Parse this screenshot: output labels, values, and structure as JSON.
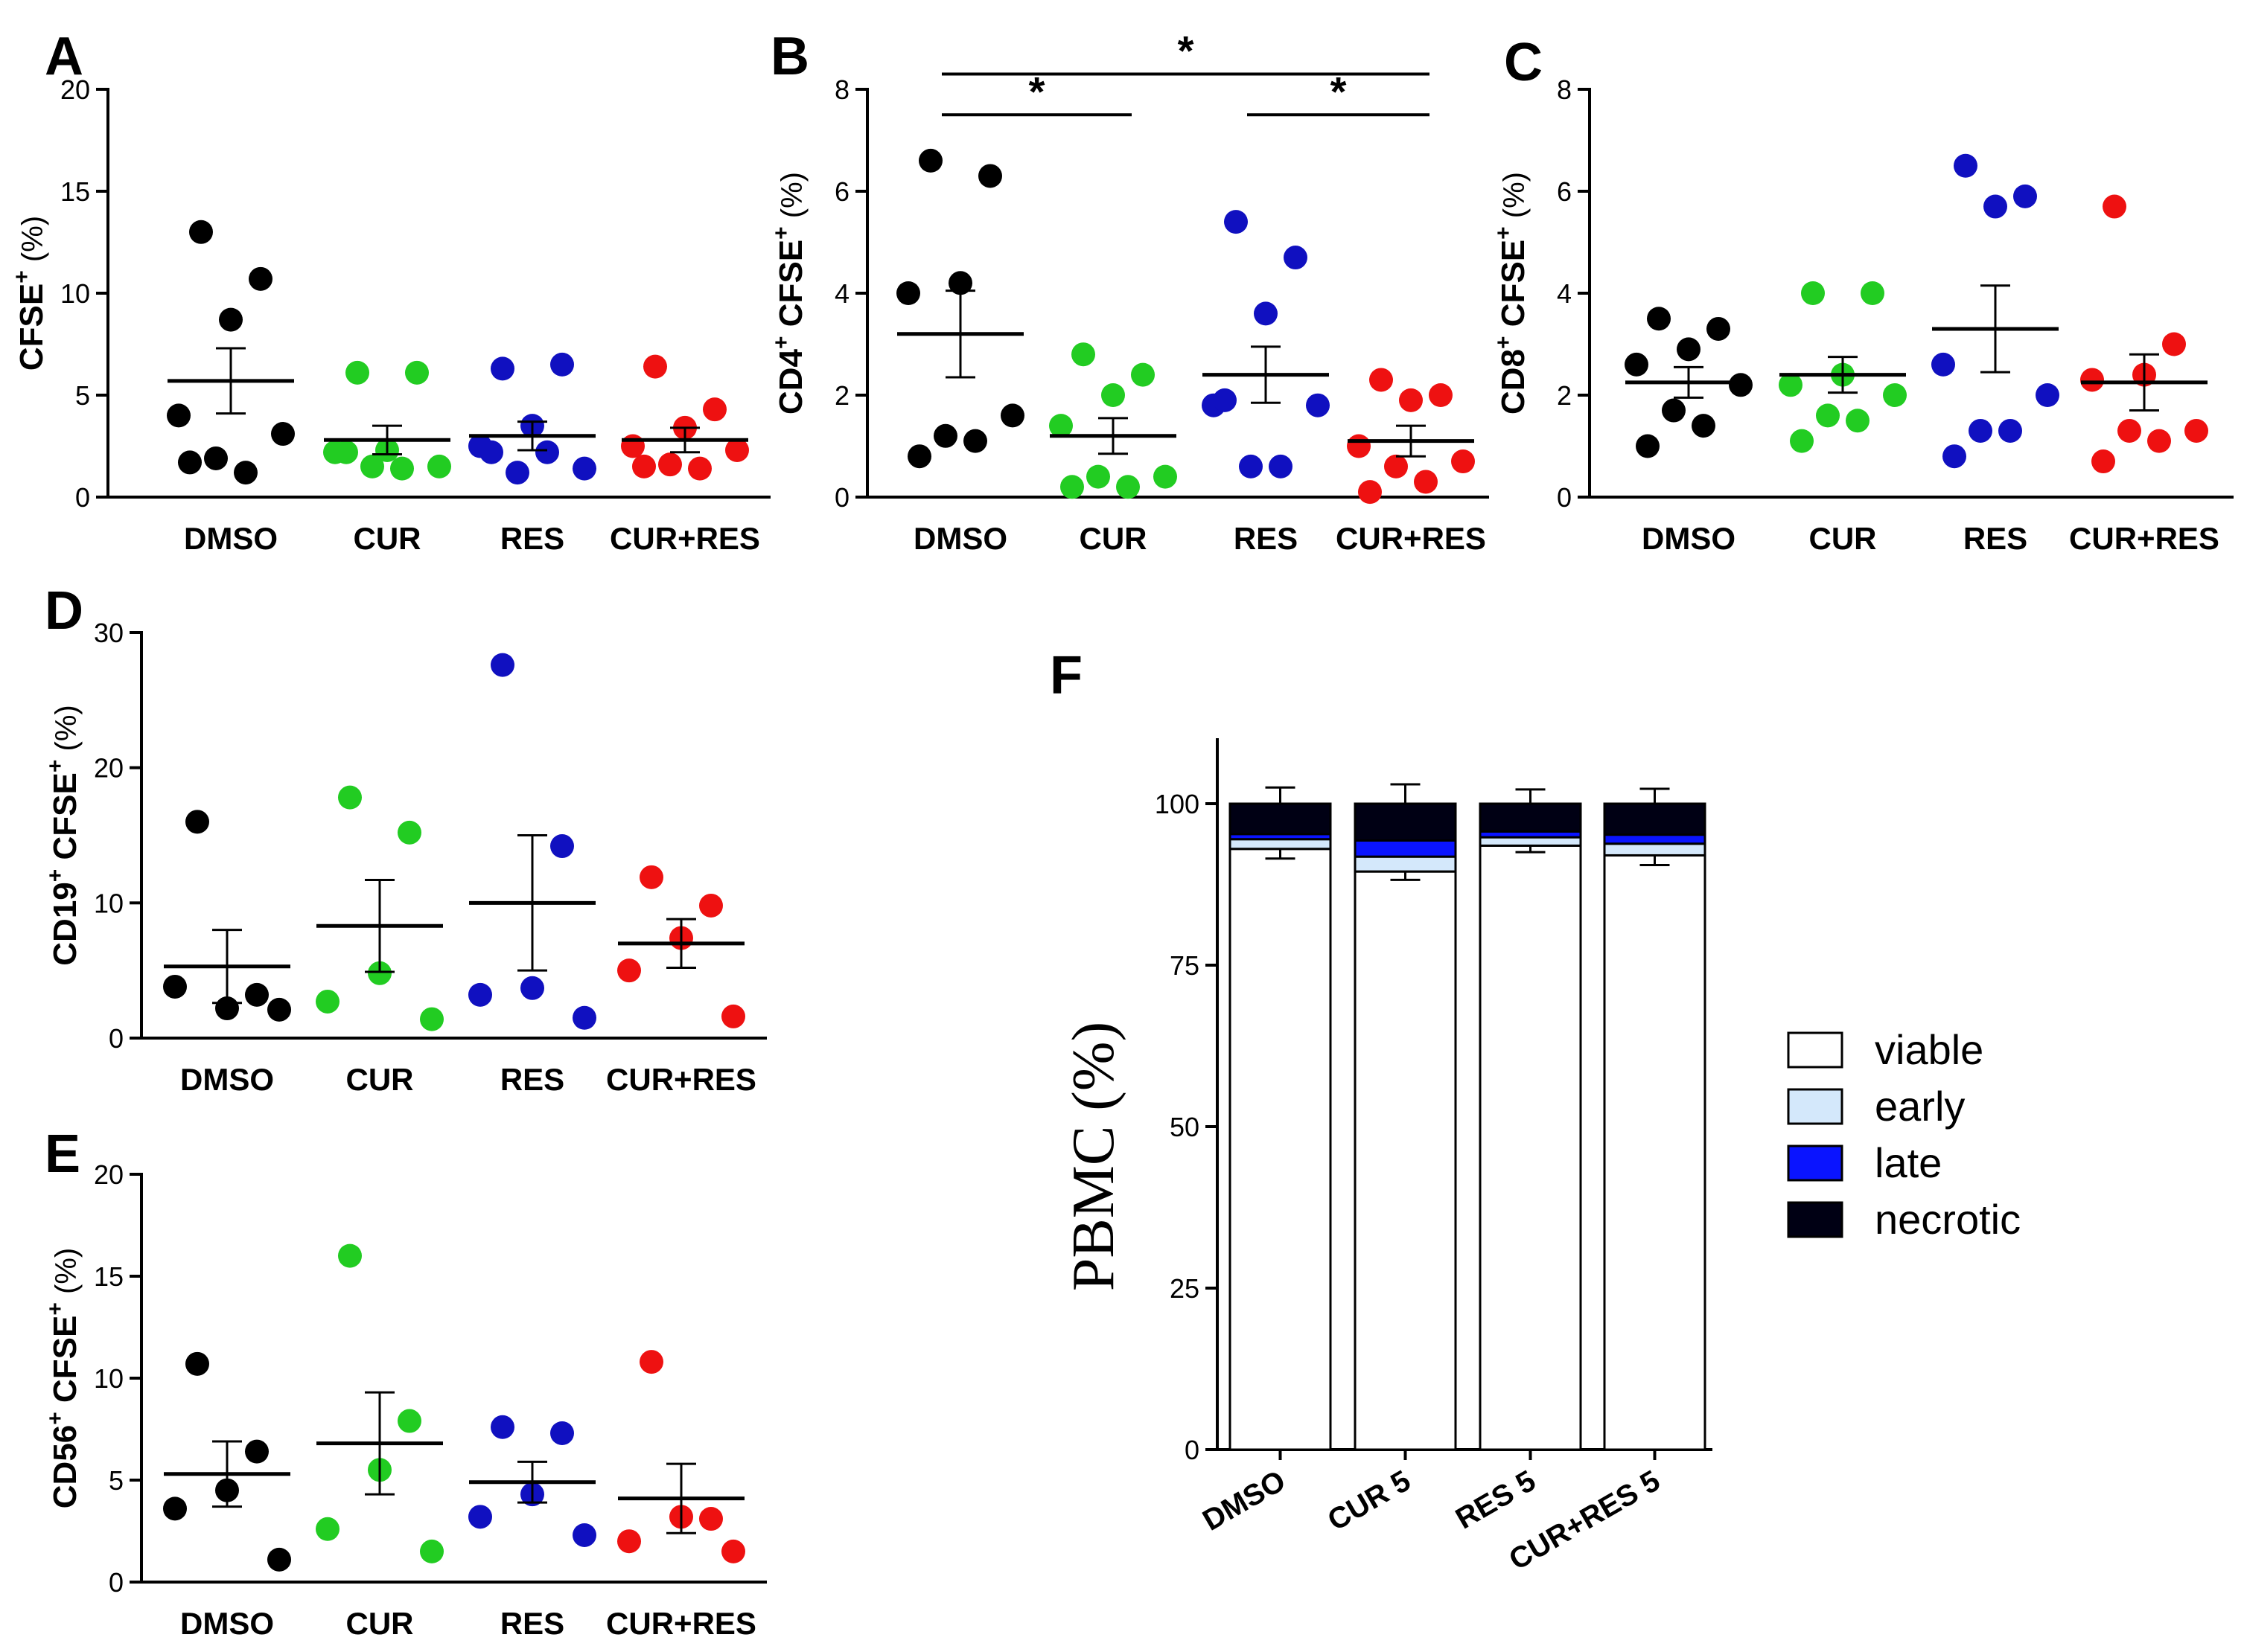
{
  "colors": {
    "dmso": "#000000",
    "cur": "#22cc22",
    "res": "#1010c0",
    "combo": "#ee1111",
    "viable": "#ffffff",
    "early": "#d4e8fb",
    "late": "#0a14ff",
    "necrotic": "#000014"
  },
  "chart_data": [
    {
      "id": "A",
      "type": "scatter",
      "panel_label": "A",
      "ylabel": "CFSE",
      "ylabel_sup": "+",
      "ylabel_unit": "(%)",
      "ylim": [
        0,
        20
      ],
      "yticks": [
        "0",
        "5",
        "10",
        "15",
        "20"
      ],
      "categories": [
        "DMSO",
        "CUR",
        "RES",
        "CUR+RES"
      ],
      "points": [
        [
          13.0,
          10.7,
          8.7,
          4.0,
          3.1,
          1.9,
          1.2,
          1.7
        ],
        [
          6.1,
          6.1,
          2.3,
          2.2,
          1.5,
          1.5,
          1.4,
          2.2
        ],
        [
          6.3,
          6.5,
          3.5,
          2.5,
          1.4,
          1.2,
          2.2,
          2.2
        ],
        [
          6.4,
          4.3,
          3.4,
          2.5,
          2.3,
          1.6,
          1.4,
          1.5
        ]
      ],
      "mean": [
        5.7,
        2.8,
        3.0,
        2.8
      ],
      "sem": [
        1.6,
        0.7,
        0.7,
        0.6
      ],
      "significance": []
    },
    {
      "id": "B",
      "type": "scatter",
      "panel_label": "B",
      "ylabel": "CD4",
      "ylabel_sup": "+",
      "ylabel_mid": " CFSE",
      "ylabel_sup2": "+",
      "ylabel_unit": "(%)",
      "ylim": [
        0,
        8
      ],
      "yticks": [
        "0",
        "2",
        "4",
        "6",
        "8"
      ],
      "categories": [
        "DMSO",
        "CUR",
        "RES",
        "CUR+RES"
      ],
      "points": [
        [
          6.6,
          6.3,
          4.2,
          4.0,
          1.6,
          1.2,
          1.1,
          0.8
        ],
        [
          2.8,
          2.4,
          2.0,
          1.4,
          0.4,
          0.4,
          0.2,
          0.2
        ],
        [
          5.4,
          4.7,
          3.6,
          1.8,
          1.8,
          0.6,
          0.6,
          1.9
        ],
        [
          2.3,
          2.0,
          1.9,
          1.0,
          0.7,
          0.6,
          0.3,
          0.1
        ]
      ],
      "mean": [
        3.2,
        1.2,
        2.4,
        1.1
      ],
      "sem": [
        0.85,
        0.35,
        0.55,
        0.3
      ],
      "significance": [
        {
          "from": 0,
          "to": 3,
          "y": 8.3,
          "label": "*"
        },
        {
          "from": 0,
          "to": 1,
          "y": 7.5,
          "label": "*"
        },
        {
          "from": 2,
          "to": 3,
          "y": 7.5,
          "label": "*"
        }
      ]
    },
    {
      "id": "C",
      "type": "scatter",
      "panel_label": "C",
      "ylabel": "CD8",
      "ylabel_sup": "+",
      "ylabel_mid": " CFSE",
      "ylabel_sup2": "+",
      "ylabel_unit": "(%)",
      "ylim": [
        0,
        8
      ],
      "yticks": [
        "0",
        "2",
        "4",
        "6",
        "8"
      ],
      "categories": [
        "DMSO",
        "CUR",
        "RES",
        "CUR+RES"
      ],
      "points": [
        [
          3.5,
          3.3,
          2.9,
          2.6,
          2.2,
          1.7,
          1.4,
          1.0
        ],
        [
          4.0,
          4.0,
          2.4,
          2.2,
          2.0,
          1.6,
          1.5,
          1.1
        ],
        [
          6.5,
          5.9,
          5.7,
          2.6,
          2.0,
          1.3,
          1.3,
          0.8
        ],
        [
          5.7,
          3.0,
          2.4,
          2.3,
          1.3,
          1.3,
          1.1,
          0.7
        ]
      ],
      "mean": [
        2.25,
        2.4,
        3.3,
        2.25
      ],
      "sem": [
        0.3,
        0.35,
        0.85,
        0.55
      ],
      "significance": []
    },
    {
      "id": "D",
      "type": "scatter",
      "panel_label": "D",
      "ylabel": "CD19",
      "ylabel_sup": "+",
      "ylabel_mid": " CFSE",
      "ylabel_sup2": "+",
      "ylabel_unit": "(%)",
      "ylim": [
        0,
        30
      ],
      "yticks": [
        "0",
        "10",
        "20",
        "30"
      ],
      "categories": [
        "DMSO",
        "CUR",
        "RES",
        "CUR+RES"
      ],
      "points": [
        [
          16.0,
          3.2,
          2.2,
          3.8,
          2.1
        ],
        [
          17.8,
          15.2,
          4.8,
          2.7,
          1.4
        ],
        [
          27.6,
          14.2,
          3.7,
          3.2,
          1.5
        ],
        [
          11.9,
          9.8,
          7.4,
          5.0,
          1.6
        ]
      ],
      "mean": [
        5.3,
        8.3,
        10.0,
        7.0
      ],
      "sem": [
        2.7,
        3.4,
        5.0,
        1.8
      ],
      "significance": []
    },
    {
      "id": "E",
      "type": "scatter",
      "panel_label": "E",
      "ylabel": "CD56",
      "ylabel_sup": "+",
      "ylabel_mid": " CFSE",
      "ylabel_sup2": "+",
      "ylabel_unit": "(%)",
      "ylim": [
        0,
        20
      ],
      "yticks": [
        "0",
        "5",
        "10",
        "15",
        "20"
      ],
      "categories": [
        "DMSO",
        "CUR",
        "RES",
        "CUR+RES"
      ],
      "points": [
        [
          10.7,
          6.4,
          4.5,
          3.6,
          1.1
        ],
        [
          16.0,
          7.9,
          5.5,
          2.6,
          1.5
        ],
        [
          7.6,
          7.3,
          4.3,
          3.2,
          2.3
        ],
        [
          10.8,
          3.1,
          3.2,
          2.0,
          1.5
        ]
      ],
      "mean": [
        5.3,
        6.8,
        4.9,
        4.1
      ],
      "sem": [
        1.6,
        2.5,
        1.0,
        1.7
      ],
      "significance": []
    },
    {
      "id": "F",
      "type": "bar",
      "stacked": true,
      "panel_label": "F",
      "ylabel": "PBMC (%)",
      "ylim": [
        0,
        110
      ],
      "yticks": [
        "0",
        "25",
        "50",
        "75",
        "100"
      ],
      "categories": [
        "DMSO",
        "CUR 5",
        "RES 5",
        "CUR+RES 5"
      ],
      "series": [
        {
          "name": "viable",
          "values": [
            93.0,
            89.5,
            93.5,
            92.0
          ]
        },
        {
          "name": "early",
          "values": [
            1.5,
            2.3,
            1.3,
            1.8
          ]
        },
        {
          "name": "late",
          "values": [
            0.8,
            2.5,
            0.9,
            1.4
          ]
        },
        {
          "name": "necrotic",
          "values": [
            4.7,
            5.7,
            4.3,
            4.8
          ]
        }
      ],
      "error_top": [
        2.5,
        3.0,
        2.2,
        2.3
      ],
      "error_inner": [
        1.5,
        1.3,
        1.0,
        1.5
      ],
      "legend": [
        "viable",
        "early",
        "late",
        "necrotic"
      ]
    }
  ]
}
